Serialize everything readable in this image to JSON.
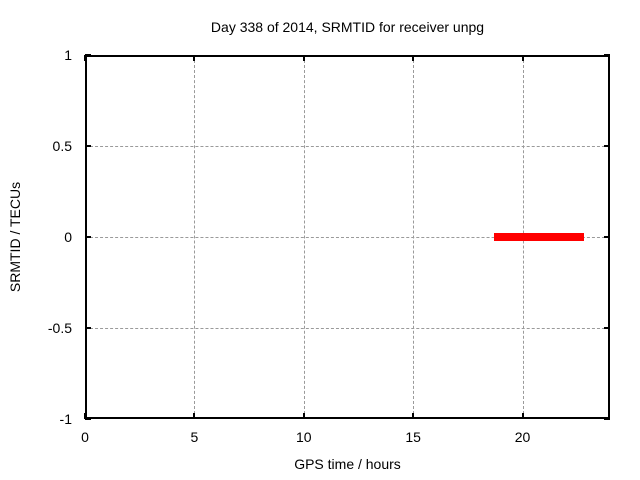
{
  "chart_data": {
    "type": "line",
    "title": "Day 338 of 2014, SRMTID for receiver unpg",
    "xlabel": "GPS time / hours",
    "ylabel": "SRMTID / TECUs",
    "xlim": [
      0,
      24
    ],
    "ylim": [
      -1,
      1
    ],
    "xticks": {
      "values": [
        0,
        5,
        10,
        15,
        20
      ],
      "labels": [
        "0",
        "5",
        "10",
        "15",
        "20"
      ]
    },
    "yticks": {
      "values": [
        -1,
        -0.5,
        0,
        0.5,
        1
      ],
      "labels": [
        "-1",
        "-0.5",
        "0",
        "0.5",
        "1"
      ]
    },
    "grid": "dashed gray at tick positions, mirrored inward ticks on all four borders",
    "legend_position": "none",
    "series": [
      {
        "name": "SRMTID",
        "type": "thick horizontal line segment",
        "color": "#ff0000",
        "points": [
          {
            "x": 18.7,
            "y": 0
          },
          {
            "x": 22.8,
            "y": 0
          }
        ]
      }
    ]
  },
  "colors": {
    "background": "#ffffff",
    "border": "#000000",
    "grid": "#9a9a9a",
    "text": "#000000",
    "series_red": "#ff0000"
  }
}
